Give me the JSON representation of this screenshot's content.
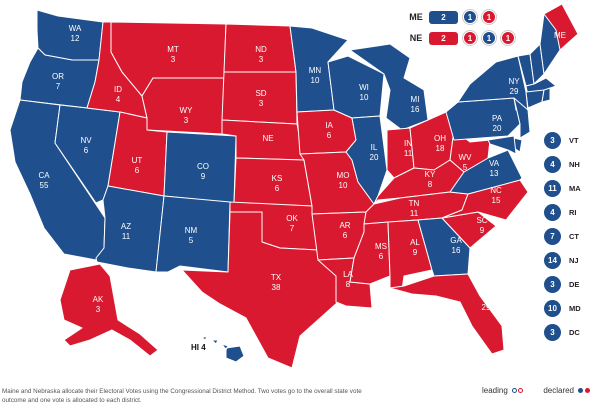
{
  "colors": {
    "blue": "#1f4f8c",
    "red": "#d9192f",
    "border": "#ffffff"
  },
  "states": [
    {
      "id": "WA",
      "ev": "12",
      "party": "blue"
    },
    {
      "id": "OR",
      "ev": "7",
      "party": "blue"
    },
    {
      "id": "CA",
      "ev": "55",
      "party": "blue"
    },
    {
      "id": "NV",
      "ev": "6",
      "party": "blue"
    },
    {
      "id": "ID",
      "ev": "4",
      "party": "red"
    },
    {
      "id": "MT",
      "ev": "3",
      "party": "red"
    },
    {
      "id": "WY",
      "ev": "3",
      "party": "red"
    },
    {
      "id": "UT",
      "ev": "6",
      "party": "red"
    },
    {
      "id": "AZ",
      "ev": "11",
      "party": "blue"
    },
    {
      "id": "CO",
      "ev": "9",
      "party": "blue"
    },
    {
      "id": "NM",
      "ev": "5",
      "party": "blue"
    },
    {
      "id": "ND",
      "ev": "3",
      "party": "red"
    },
    {
      "id": "SD",
      "ev": "3",
      "party": "red"
    },
    {
      "id": "NE",
      "ev": "",
      "party": "red"
    },
    {
      "id": "KS",
      "ev": "6",
      "party": "red"
    },
    {
      "id": "OK",
      "ev": "7",
      "party": "red"
    },
    {
      "id": "TX",
      "ev": "38",
      "party": "red"
    },
    {
      "id": "MN",
      "ev": "10",
      "party": "blue"
    },
    {
      "id": "IA",
      "ev": "6",
      "party": "red"
    },
    {
      "id": "MO",
      "ev": "10",
      "party": "red"
    },
    {
      "id": "AR",
      "ev": "6",
      "party": "red"
    },
    {
      "id": "LA",
      "ev": "8",
      "party": "red"
    },
    {
      "id": "WI",
      "ev": "10",
      "party": "blue"
    },
    {
      "id": "IL",
      "ev": "20",
      "party": "blue"
    },
    {
      "id": "MI",
      "ev": "16",
      "party": "blue"
    },
    {
      "id": "IN",
      "ev": "11",
      "party": "red"
    },
    {
      "id": "OH",
      "ev": "18",
      "party": "red"
    },
    {
      "id": "KY",
      "ev": "8",
      "party": "red"
    },
    {
      "id": "TN",
      "ev": "11",
      "party": "red"
    },
    {
      "id": "MS",
      "ev": "6",
      "party": "red"
    },
    {
      "id": "AL",
      "ev": "9",
      "party": "red"
    },
    {
      "id": "GA",
      "ev": "16",
      "party": "blue"
    },
    {
      "id": "FL",
      "ev": "29",
      "party": "red"
    },
    {
      "id": "SC",
      "ev": "9",
      "party": "red"
    },
    {
      "id": "NC",
      "ev": "15",
      "party": "red"
    },
    {
      "id": "VA",
      "ev": "13",
      "party": "blue"
    },
    {
      "id": "WV",
      "ev": "5",
      "party": "red"
    },
    {
      "id": "PA",
      "ev": "20",
      "party": "blue"
    },
    {
      "id": "NY",
      "ev": "29",
      "party": "blue"
    },
    {
      "id": "ME",
      "ev": "",
      "party": "blue"
    },
    {
      "id": "AK",
      "ev": "3",
      "party": "red"
    },
    {
      "id": "HI",
      "ev": "4",
      "party": "blue"
    }
  ],
  "splits": [
    {
      "state": "ME",
      "box": "2",
      "box_party": "blue",
      "districts": [
        {
          "v": "1",
          "p": "blue"
        },
        {
          "v": "1",
          "p": "red"
        }
      ]
    },
    {
      "state": "NE",
      "box": "2",
      "box_party": "red",
      "districts": [
        {
          "v": "1",
          "p": "red"
        },
        {
          "v": "1",
          "p": "blue"
        },
        {
          "v": "1",
          "p": "red"
        }
      ]
    }
  ],
  "small_states": [
    {
      "abbr": "VT",
      "ev": "3"
    },
    {
      "abbr": "NH",
      "ev": "4"
    },
    {
      "abbr": "MA",
      "ev": "11"
    },
    {
      "abbr": "RI",
      "ev": "4"
    },
    {
      "abbr": "CT",
      "ev": "7"
    },
    {
      "abbr": "NJ",
      "ev": "14"
    },
    {
      "abbr": "DE",
      "ev": "3"
    },
    {
      "abbr": "MD",
      "ev": "10"
    },
    {
      "abbr": "DC",
      "ev": "3"
    }
  ],
  "hi_label": "HI 4",
  "footnote": "Maine and Nebraska allocate their Electoral Votes using the Congressional District Method. Two votes go to the overall state vote outcome and one vote is allocated to each district.",
  "legend": {
    "leading": "leading",
    "declared": "declared"
  }
}
